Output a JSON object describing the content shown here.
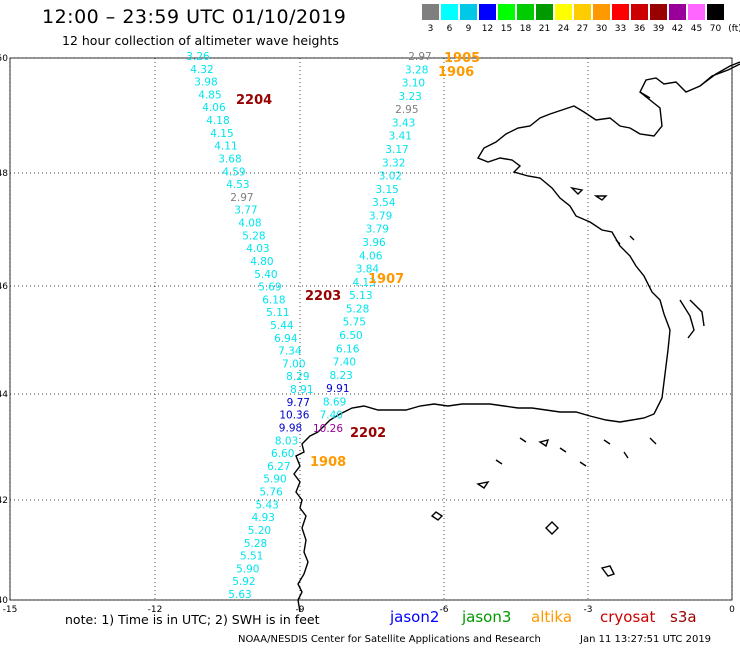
{
  "title": "12:00 – 23:59 UTC 01/10/2019",
  "subtitle": "12 hour collection of altimeter wave heights",
  "legend": {
    "unit": "(ft)",
    "bins": [
      {
        "label": "3",
        "color": "#7f7f7f"
      },
      {
        "label": "6",
        "color": "#00ffff"
      },
      {
        "label": "9",
        "color": "#00c8e6"
      },
      {
        "label": "12",
        "color": "#0000ff"
      },
      {
        "label": "15",
        "color": "#00ff00"
      },
      {
        "label": "18",
        "color": "#00cc00"
      },
      {
        "label": "21",
        "color": "#009900"
      },
      {
        "label": "24",
        "color": "#ffff00"
      },
      {
        "label": "27",
        "color": "#ffcc00"
      },
      {
        "label": "30",
        "color": "#ff9900"
      },
      {
        "label": "33",
        "color": "#ff0000"
      },
      {
        "label": "36",
        "color": "#cc0000"
      },
      {
        "label": "39",
        "color": "#990000"
      },
      {
        "label": "42",
        "color": "#990099"
      },
      {
        "label": "45",
        "color": "#ff66ff"
      },
      {
        "label": "70",
        "color": "#000000"
      }
    ]
  },
  "map": {
    "lon_range": [
      -15,
      0
    ],
    "lat_range": [
      40,
      50
    ],
    "x_ticks": [
      "-15",
      "-12",
      "-9",
      "-6",
      "-3",
      "0"
    ],
    "y_ticks": [
      "50",
      "48",
      "46",
      "44",
      "42",
      "40"
    ]
  },
  "track_west": [
    {
      "v": "3.26",
      "c": "#00e5ee"
    },
    {
      "v": "4.32",
      "c": "#00e5ee"
    },
    {
      "v": "3.98",
      "c": "#00e5ee"
    },
    {
      "v": "4.85",
      "c": "#00e5ee"
    },
    {
      "v": "4.06",
      "c": "#00e5ee"
    },
    {
      "v": "4.18",
      "c": "#00e5ee"
    },
    {
      "v": "4.15",
      "c": "#00e5ee"
    },
    {
      "v": "4.11",
      "c": "#00e5ee"
    },
    {
      "v": "3.68",
      "c": "#00e5ee"
    },
    {
      "v": "4.59",
      "c": "#00e5ee"
    },
    {
      "v": "4.53",
      "c": "#00e5ee"
    },
    {
      "v": "2.97",
      "c": "#7f7f7f"
    },
    {
      "v": "3.77",
      "c": "#00e5ee"
    },
    {
      "v": "4.08",
      "c": "#00e5ee"
    },
    {
      "v": "5.28",
      "c": "#00e5ee"
    },
    {
      "v": "4.03",
      "c": "#00e5ee"
    },
    {
      "v": "4.80",
      "c": "#00e5ee"
    },
    {
      "v": "5.40",
      "c": "#00e5ee"
    },
    {
      "v": "5.69",
      "c": "#00e5ee"
    },
    {
      "v": "6.18",
      "c": "#00e5ee"
    },
    {
      "v": "5.11",
      "c": "#00e5ee"
    },
    {
      "v": "5.44",
      "c": "#00e5ee"
    },
    {
      "v": "6.94",
      "c": "#00e5ee"
    },
    {
      "v": "7.34",
      "c": "#00e5ee"
    },
    {
      "v": "7.00",
      "c": "#00e5ee"
    },
    {
      "v": "8.29",
      "c": "#00e5ee"
    },
    {
      "v": "8.91",
      "c": "#00e5ee"
    },
    {
      "v": "9.77",
      "c": "#0000cd"
    },
    {
      "v": "10.36",
      "c": "#0000cd"
    },
    {
      "v": "9.98",
      "c": "#0000cd"
    },
    {
      "v": "8.03",
      "c": "#00e5ee"
    },
    {
      "v": "6.60",
      "c": "#00e5ee"
    },
    {
      "v": "6.27",
      "c": "#00e5ee"
    },
    {
      "v": "5.90",
      "c": "#00e5ee"
    },
    {
      "v": "5.76",
      "c": "#00e5ee"
    },
    {
      "v": "5.43",
      "c": "#00e5ee"
    },
    {
      "v": "4.93",
      "c": "#00e5ee"
    },
    {
      "v": "5.20",
      "c": "#00e5ee"
    },
    {
      "v": "5.28",
      "c": "#00e5ee"
    },
    {
      "v": "5.51",
      "c": "#00e5ee"
    },
    {
      "v": "5.90",
      "c": "#00e5ee"
    },
    {
      "v": "5.92",
      "c": "#00e5ee"
    },
    {
      "v": "5.63",
      "c": "#00e5ee"
    }
  ],
  "track_east": [
    {
      "v": "2.97",
      "c": "#7f7f7f"
    },
    {
      "v": "3.28",
      "c": "#00e5ee"
    },
    {
      "v": "3.10",
      "c": "#00e5ee"
    },
    {
      "v": "3.23",
      "c": "#00e5ee"
    },
    {
      "v": "2.95",
      "c": "#7f7f7f"
    },
    {
      "v": "3.43",
      "c": "#00e5ee"
    },
    {
      "v": "3.41",
      "c": "#00e5ee"
    },
    {
      "v": "3.17",
      "c": "#00e5ee"
    },
    {
      "v": "3.32",
      "c": "#00e5ee"
    },
    {
      "v": "3.02",
      "c": "#00e5ee"
    },
    {
      "v": "3.15",
      "c": "#00e5ee"
    },
    {
      "v": "3.54",
      "c": "#00e5ee"
    },
    {
      "v": "3.79",
      "c": "#00e5ee"
    },
    {
      "v": "3.79",
      "c": "#00e5ee"
    },
    {
      "v": "3.96",
      "c": "#00e5ee"
    },
    {
      "v": "4.06",
      "c": "#00e5ee"
    },
    {
      "v": "3.84",
      "c": "#00e5ee"
    },
    {
      "v": "4.13",
      "c": "#00e5ee"
    },
    {
      "v": "5.13",
      "c": "#00e5ee"
    },
    {
      "v": "5.28",
      "c": "#00e5ee"
    },
    {
      "v": "5.75",
      "c": "#00e5ee"
    },
    {
      "v": "6.50",
      "c": "#00e5ee"
    },
    {
      "v": "6.16",
      "c": "#00e5ee"
    },
    {
      "v": "7.40",
      "c": "#00e5ee"
    },
    {
      "v": "8.23",
      "c": "#00e5ee"
    },
    {
      "v": "9.91",
      "c": "#0000cd"
    },
    {
      "v": "8.69",
      "c": "#00e5ee"
    },
    {
      "v": "7.40",
      "c": "#00e5ee"
    },
    {
      "v": "10.26",
      "c": "#990099"
    }
  ],
  "pass_labels": [
    {
      "id": "1905",
      "c": "#ff9900"
    },
    {
      "id": "1906",
      "c": "#ff9900"
    },
    {
      "id": "2204",
      "c": "#990000"
    },
    {
      "id": "1907",
      "c": "#ff9900"
    },
    {
      "id": "2203",
      "c": "#990000"
    },
    {
      "id": "2202",
      "c": "#990000"
    },
    {
      "id": "1908",
      "c": "#ff9900"
    }
  ],
  "note": "note: 1) Time is in UTC; 2) SWH is in feet",
  "satellites": [
    {
      "name": "jason2",
      "color": "#0000ff"
    },
    {
      "name": "jason3",
      "color": "#009900"
    },
    {
      "name": "altika",
      "color": "#ff9900"
    },
    {
      "name": "cryosat",
      "color": "#cc0000"
    },
    {
      "name": "s3a",
      "color": "#990000"
    }
  ],
  "credit": "NOAA/NESDIS Center for Satellite Applications and Research",
  "timestamp": "Jan 11 13:27:51 UTC 2019"
}
